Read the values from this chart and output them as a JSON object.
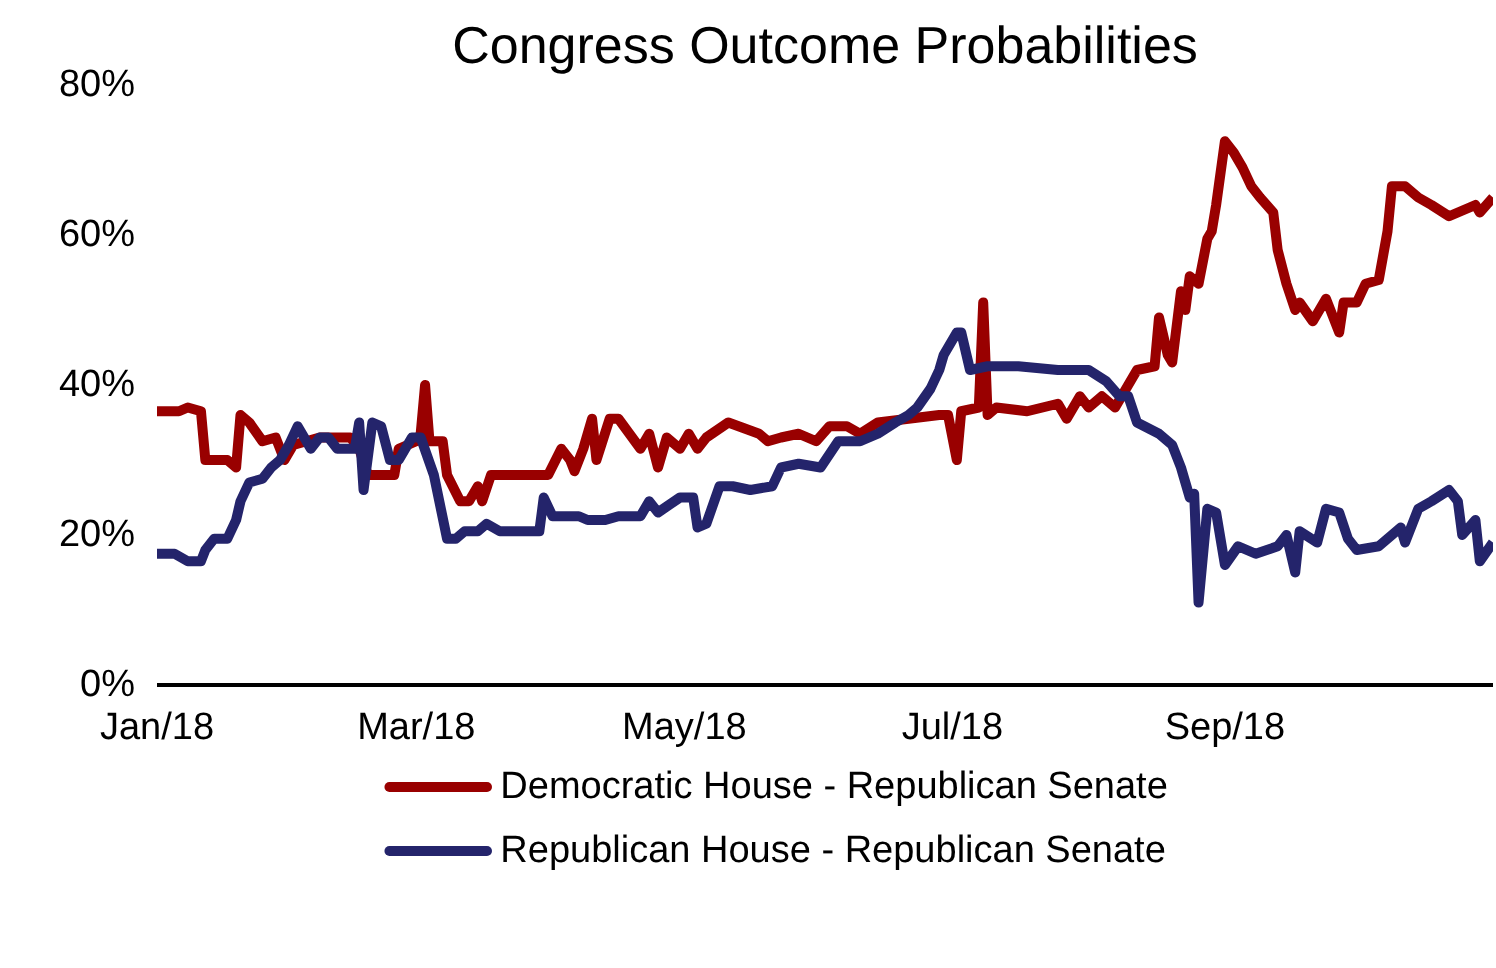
{
  "chart_data": {
    "type": "line",
    "title": "Congress Outcome Probabilities",
    "xlim": [
      "2018-01-01",
      "2018-11-01"
    ],
    "xticks": [
      {
        "value": "2018-01-01",
        "label": "Jan/18"
      },
      {
        "value": "2018-03-01",
        "label": "Mar/18"
      },
      {
        "value": "2018-05-01",
        "label": "May/18"
      },
      {
        "value": "2018-07-01",
        "label": "Jul/18"
      },
      {
        "value": "2018-09-01",
        "label": "Sep/18"
      }
    ],
    "ylim": [
      0,
      80
    ],
    "yticks": [
      {
        "value": 0,
        "label": "0%"
      },
      {
        "value": 20,
        "label": "20%"
      },
      {
        "value": 40,
        "label": "40%"
      },
      {
        "value": 60,
        "label": "60%"
      },
      {
        "value": 80,
        "label": "80%"
      }
    ],
    "grid": false,
    "legend": "bottom",
    "marker": "none",
    "line_style": "solid",
    "series": [
      {
        "name": "Democratic House - Republican Senate",
        "color": "#990000",
        "x": [
          "2018-01-01",
          "2018-01-06",
          "2018-01-08",
          "2018-01-11",
          "2018-01-12",
          "2018-01-17",
          "2018-01-19",
          "2018-01-20",
          "2018-01-22",
          "2018-01-25",
          "2018-01-28",
          "2018-01-30",
          "2018-02-01",
          "2018-02-07",
          "2018-02-14",
          "2018-02-16",
          "2018-02-18",
          "2018-02-24",
          "2018-02-25",
          "2018-03-01",
          "2018-03-02",
          "2018-03-03",
          "2018-03-04",
          "2018-03-07",
          "2018-03-08",
          "2018-03-11",
          "2018-03-13",
          "2018-03-15",
          "2018-03-16",
          "2018-03-18",
          "2018-03-24",
          "2018-03-31",
          "2018-04-03",
          "2018-04-05",
          "2018-04-06",
          "2018-04-08",
          "2018-04-10",
          "2018-04-11",
          "2018-04-14",
          "2018-04-16",
          "2018-04-21",
          "2018-04-23",
          "2018-04-25",
          "2018-04-27",
          "2018-04-30",
          "2018-05-02",
          "2018-05-04",
          "2018-05-06",
          "2018-05-11",
          "2018-05-18",
          "2018-05-20",
          "2018-05-23",
          "2018-05-27",
          "2018-05-31",
          "2018-06-03",
          "2018-06-07",
          "2018-06-10",
          "2018-06-14",
          "2018-06-21",
          "2018-06-28",
          "2018-06-30",
          "2018-07-02",
          "2018-07-03",
          "2018-07-07",
          "2018-07-08",
          "2018-07-09",
          "2018-07-11",
          "2018-07-18",
          "2018-07-25",
          "2018-07-27",
          "2018-07-30",
          "2018-08-01",
          "2018-08-04",
          "2018-08-07",
          "2018-08-10",
          "2018-08-12",
          "2018-08-16",
          "2018-08-17",
          "2018-08-19",
          "2018-08-20",
          "2018-08-22",
          "2018-08-23",
          "2018-08-24",
          "2018-08-26",
          "2018-08-28",
          "2018-08-29",
          "2018-08-30",
          "2018-09-01",
          "2018-09-03",
          "2018-09-05",
          "2018-09-07",
          "2018-09-09",
          "2018-09-12",
          "2018-09-13",
          "2018-09-15",
          "2018-09-17",
          "2018-09-18",
          "2018-09-21",
          "2018-09-24",
          "2018-09-27",
          "2018-09-28",
          "2018-10-01",
          "2018-10-03",
          "2018-10-06",
          "2018-10-08",
          "2018-10-09",
          "2018-10-12",
          "2018-10-15",
          "2018-10-18",
          "2018-10-22",
          "2018-10-24",
          "2018-10-28",
          "2018-10-29",
          "2018-11-01"
        ],
        "values": [
          36.5,
          36.5,
          37,
          36.5,
          30,
          30,
          29,
          36,
          35,
          32.5,
          33,
          30,
          32,
          33,
          33,
          31.5,
          28,
          28,
          31.5,
          32.5,
          33.5,
          40,
          32.5,
          32.5,
          28,
          24.5,
          24.5,
          26.5,
          24.5,
          28,
          28,
          28,
          31.5,
          30,
          28.5,
          31.5,
          35.5,
          30,
          35.5,
          35.5,
          31.5,
          33.5,
          29,
          33,
          31.5,
          33.5,
          31.5,
          33,
          35,
          33.5,
          32.5,
          33,
          33.5,
          32.5,
          34.5,
          34.5,
          33.5,
          35,
          35.5,
          36,
          36,
          30,
          36.5,
          37,
          51,
          36,
          37,
          36.5,
          37.5,
          35.5,
          38.5,
          37,
          38.5,
          37,
          40,
          42,
          42.5,
          49,
          44,
          43,
          52.5,
          50,
          54.5,
          53.5,
          59.5,
          60.5,
          64,
          72.5,
          71,
          69,
          66.5,
          65,
          63,
          58,
          53.5,
          50,
          51,
          48.5,
          51.5,
          47,
          51,
          51,
          53.5,
          54,
          60.5,
          66.5,
          66.5,
          65,
          64,
          62.5,
          63,
          64,
          63,
          65
        ]
      },
      {
        "name": "Republican House - Republican Senate",
        "color": "#24246b",
        "x": [
          "2018-01-01",
          "2018-01-05",
          "2018-01-08",
          "2018-01-11",
          "2018-01-12",
          "2018-01-14",
          "2018-01-17",
          "2018-01-19",
          "2018-01-20",
          "2018-01-22",
          "2018-01-25",
          "2018-01-27",
          "2018-01-29",
          "2018-01-31",
          "2018-02-02",
          "2018-02-05",
          "2018-02-07",
          "2018-02-09",
          "2018-02-11",
          "2018-02-15",
          "2018-02-16",
          "2018-02-17",
          "2018-02-19",
          "2018-02-21",
          "2018-02-23",
          "2018-02-25",
          "2018-02-28",
          "2018-03-02",
          "2018-03-05",
          "2018-03-08",
          "2018-03-10",
          "2018-03-12",
          "2018-03-15",
          "2018-03-17",
          "2018-03-20",
          "2018-03-29",
          "2018-03-30",
          "2018-04-01",
          "2018-04-07",
          "2018-04-09",
          "2018-04-13",
          "2018-04-16",
          "2018-04-21",
          "2018-04-23",
          "2018-04-25",
          "2018-04-30",
          "2018-05-03",
          "2018-05-04",
          "2018-05-06",
          "2018-05-09",
          "2018-05-12",
          "2018-05-16",
          "2018-05-21",
          "2018-05-23",
          "2018-05-27",
          "2018-06-01",
          "2018-06-05",
          "2018-06-10",
          "2018-06-14",
          "2018-06-18",
          "2018-06-21",
          "2018-06-23",
          "2018-06-26",
          "2018-06-28",
          "2018-06-29",
          "2018-07-02",
          "2018-07-03",
          "2018-07-05",
          "2018-07-09",
          "2018-07-16",
          "2018-07-25",
          "2018-08-01",
          "2018-08-05",
          "2018-08-08",
          "2018-08-10",
          "2018-08-12",
          "2018-08-17",
          "2018-08-20",
          "2018-08-22",
          "2018-08-24",
          "2018-08-25",
          "2018-08-26",
          "2018-08-28",
          "2018-08-30",
          "2018-09-01",
          "2018-09-04",
          "2018-09-08",
          "2018-09-13",
          "2018-09-15",
          "2018-09-17",
          "2018-09-18",
          "2018-09-22",
          "2018-09-24",
          "2018-09-27",
          "2018-09-29",
          "2018-10-01",
          "2018-10-06",
          "2018-10-11",
          "2018-10-12",
          "2018-10-15",
          "2018-10-18",
          "2018-10-22",
          "2018-10-24",
          "2018-10-25",
          "2018-10-28",
          "2018-10-29",
          "2018-11-01"
        ],
        "values": [
          17.5,
          17.5,
          16.5,
          16.5,
          18,
          19.5,
          19.5,
          22,
          24.5,
          27,
          27.5,
          29,
          30,
          32,
          34.5,
          31.5,
          33,
          33,
          31.5,
          31.5,
          35,
          26,
          35,
          34.5,
          30,
          30,
          33,
          33,
          28,
          19.5,
          19.5,
          20.5,
          20.5,
          21.5,
          20.5,
          20.5,
          25,
          22.5,
          22.5,
          22,
          22,
          22.5,
          22.5,
          24.5,
          23,
          25,
          25,
          21,
          21.5,
          26.5,
          26.5,
          26,
          26.5,
          29,
          29.5,
          29,
          32.5,
          32.5,
          33.5,
          35,
          36,
          37,
          39.5,
          42,
          44,
          47,
          47,
          42,
          42.5,
          42.5,
          42,
          42,
          40.5,
          38.5,
          38.5,
          35,
          33.5,
          32,
          29,
          25,
          25.5,
          11,
          23.5,
          23,
          16,
          18.5,
          17.5,
          18.5,
          20,
          15,
          20.5,
          19,
          23.5,
          23,
          19.5,
          18,
          18.5,
          21,
          19,
          23.5,
          24.5,
          26,
          24.5,
          20,
          22,
          16.5,
          19
        ]
      }
    ]
  }
}
